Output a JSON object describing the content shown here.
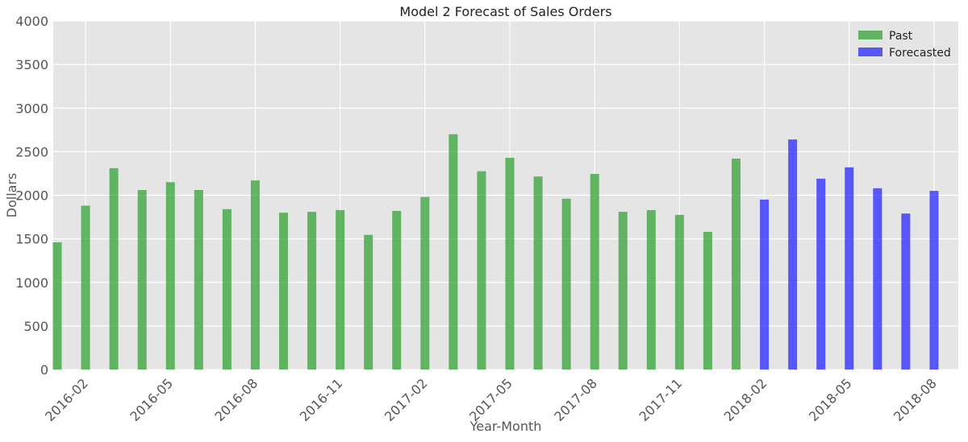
{
  "chart_data": {
    "type": "bar",
    "title": "Model 2 Forecast of Sales Orders",
    "xlabel": "Year-Month",
    "ylabel": "Dollars",
    "ylim": [
      0,
      4000
    ],
    "yticks": [
      0,
      500,
      1000,
      1500,
      2000,
      2500,
      3000,
      3500,
      4000
    ],
    "x": [
      "2016-01",
      "2016-02",
      "2016-03",
      "2016-04",
      "2016-05",
      "2016-06",
      "2016-07",
      "2016-08",
      "2016-09",
      "2016-10",
      "2016-11",
      "2016-12",
      "2017-01",
      "2017-02",
      "2017-03",
      "2017-04",
      "2017-05",
      "2017-06",
      "2017-07",
      "2017-08",
      "2017-09",
      "2017-10",
      "2017-11",
      "2017-12",
      "2018-01",
      "2018-02",
      "2018-03",
      "2018-04",
      "2018-05",
      "2018-06",
      "2018-07",
      "2018-08"
    ],
    "xtick_labels": [
      "2016-02",
      "2016-05",
      "2016-08",
      "2016-11",
      "2017-02",
      "2017-05",
      "2017-08",
      "2017-11",
      "2018-02",
      "2018-05",
      "2018-08"
    ],
    "series": [
      {
        "name": "Past",
        "color": "#2ca02c",
        "values": [
          1460,
          1880,
          2310,
          2060,
          2150,
          2060,
          1840,
          2170,
          1800,
          1810,
          1830,
          1545,
          1820,
          1980,
          2700,
          2275,
          2430,
          2215,
          1960,
          2245,
          1810,
          1830,
          1775,
          1580,
          2420,
          null,
          null,
          null,
          null,
          null,
          null,
          null
        ]
      },
      {
        "name": "Forecasted",
        "color": "#2020ff",
        "values": [
          null,
          null,
          null,
          null,
          null,
          null,
          null,
          null,
          null,
          null,
          null,
          null,
          null,
          null,
          null,
          null,
          null,
          null,
          null,
          null,
          null,
          null,
          null,
          null,
          null,
          1950,
          2640,
          2190,
          2320,
          2080,
          1790,
          2050
        ]
      }
    ],
    "grid": true,
    "legend": "top-right",
    "background": "#e5e5e5"
  }
}
